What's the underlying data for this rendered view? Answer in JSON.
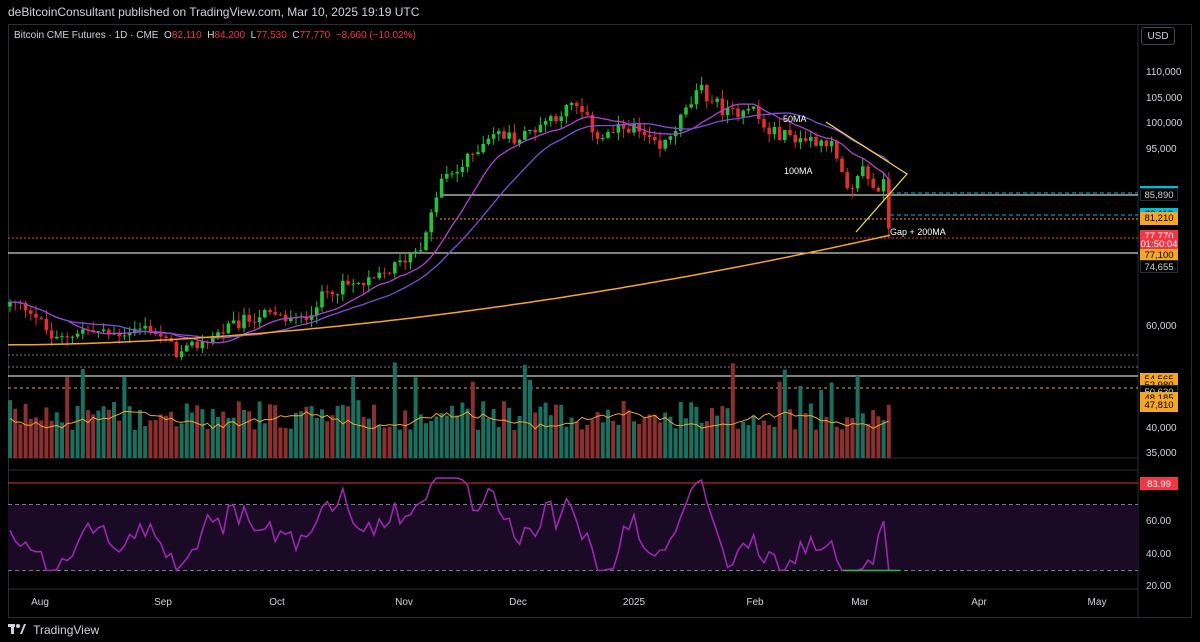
{
  "header": {
    "published_text": "deBitcoinConsultant published on TradingView.com, Mar 10, 2025 19:19 UTC"
  },
  "legend": {
    "symbol": "Bitcoin CME Futures · 1D · CME",
    "o_label": "O",
    "o_value": "82,110",
    "h_label": "H",
    "h_value": "84,200",
    "l_label": "L",
    "l_value": "77,530",
    "c_label": "C",
    "c_value": "77,770",
    "change": "−8,660 (−10.02%)"
  },
  "currency_button": "USD",
  "footer": {
    "brand": "TradingView"
  },
  "chart_data": {
    "type": "candlestick",
    "x_axis_labels": [
      "Aug",
      "Sep",
      "Oct",
      "Nov",
      "Dec",
      "2025",
      "Feb",
      "Mar",
      "Apr",
      "May"
    ],
    "price_axis_ticks": [
      "110,000",
      "105,000",
      "100,000",
      "95,000",
      "60,000",
      "40,000",
      "35,000"
    ],
    "price_range": [
      33000,
      113000
    ],
    "annotations": [
      {
        "text": "50MA"
      },
      {
        "text": "100MA"
      },
      {
        "text": "Gap + 200MA"
      }
    ],
    "price_tags": [
      {
        "text": "86,430",
        "bg": "#00bcd4",
        "fg": "#000000",
        "price": 86430
      },
      {
        "text": "85,890",
        "bg": "#000000",
        "fg": "#d1d4dc",
        "price": 85890
      },
      {
        "text": "82,110",
        "bg": "#00bcd4",
        "fg": "#000000",
        "price": 82110
      },
      {
        "text": "81,210",
        "bg": "#f5a623",
        "fg": "#000000",
        "price": 81210
      },
      {
        "text": "77,770",
        "bg": "#f23645",
        "fg": "#ffffff",
        "price": 77770
      },
      {
        "text": "01:50:04",
        "bg": "#f23645",
        "fg": "#ffffff",
        "price": 76200
      },
      {
        "text": "77,100",
        "bg": "#f5a623",
        "fg": "#000000",
        "price": 74100
      },
      {
        "text": "74,655",
        "bg": "#000000",
        "fg": "#d1d4dc",
        "price": 71800
      },
      {
        "text": "54,565",
        "bg": "#f5a623",
        "fg": "#000000",
        "price": 49800
      },
      {
        "text": "52,980",
        "bg": "#f5a623",
        "fg": "#000000",
        "price": 48600
      },
      {
        "text": "50,630",
        "bg": "#000000",
        "fg": "#d1d4dc",
        "price": 47300
      },
      {
        "text": "48,185",
        "bg": "#f5a623",
        "fg": "#000000",
        "price": 45900
      },
      {
        "text": "47,810",
        "bg": "#f5a623",
        "fg": "#000000",
        "price": 44600
      }
    ],
    "rsi": {
      "ticks": [
        "60.00",
        "40.00",
        "20.00"
      ],
      "current_tag": "83.99",
      "range": [
        15,
        88
      ]
    },
    "colors": {
      "up": "#26c03a",
      "down": "#e0302e",
      "ma50": "#9c27b0",
      "ma200": "#f5a623",
      "rsi": "#9c27b0"
    }
  }
}
